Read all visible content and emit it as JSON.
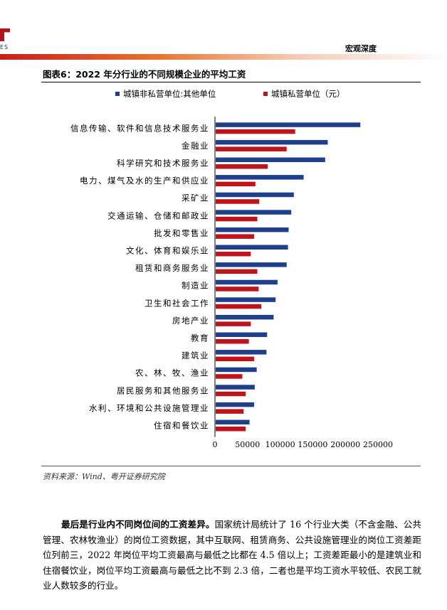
{
  "header": {
    "logo_sub": "ES",
    "section": "宏观深度"
  },
  "figure": {
    "title": "图表6：2022 年分行业的不同规模企业的平均工资",
    "source": "资料来源：Wind、粤开证券研究院"
  },
  "chart_data": {
    "type": "bar",
    "orientation": "horizontal",
    "categories": [
      "信息传输、软件和信息技术服务业",
      "金融业",
      "科学研究和技术服务业",
      "电力、煤气及水的生产和供应业",
      "采矿业",
      "交通运输、仓储和邮政业",
      "批发和零售业",
      "文化、体育和娱乐业",
      "租赁和商务服务业",
      "制造业",
      "卫生和社会工作",
      "房地产业",
      "教育",
      "建筑业",
      "农、林、牧、渔业",
      "居民服务和其他服务业",
      "水利、环境和公共设施管理业",
      "住宿和餐饮业"
    ],
    "series": [
      {
        "name": "城镇非私营单位:其他单位",
        "color": "#1f3f8c",
        "values": [
          223000,
          173000,
          169000,
          136000,
          121000,
          117000,
          113000,
          112000,
          110000,
          96000,
          93000,
          90000,
          80000,
          79000,
          64000,
          61000,
          60000,
          53000
        ]
      },
      {
        "name": "城镇私营单位（元）",
        "color": "#c0141c",
        "values": [
          123000,
          110000,
          81000,
          62000,
          68000,
          65000,
          60000,
          55000,
          65000,
          67000,
          71000,
          55000,
          52000,
          60000,
          42000,
          47000,
          44000,
          47000
        ]
      }
    ],
    "xlim": [
      0,
      250000
    ],
    "xticks": [
      0,
      50000,
      100000,
      150000,
      200000,
      250000
    ],
    "xtick_labels": [
      "0",
      "50000",
      "100000",
      "150000",
      "200000",
      "250000"
    ],
    "legend": "top",
    "grid": false
  },
  "paragraph": {
    "bold": "最后是行业内不同岗位间的工资差异。",
    "text": "国家统计局统计了 16 个行业大类（不含金融、公共管理、农林牧渔业）的岗位工资数据，其中互联网、租赁商务、公共设施管理业的岗位工资差距位列前三，2022 年岗位平均工资最高与最低之比都在 4.5 倍以上；工资差距最小的是建筑业和住宿餐饮业，岗位平均工资最高与最低之比不到 2.3 倍，二者也是平均工资水平较低、农民工就业人数较多的行业。"
  }
}
